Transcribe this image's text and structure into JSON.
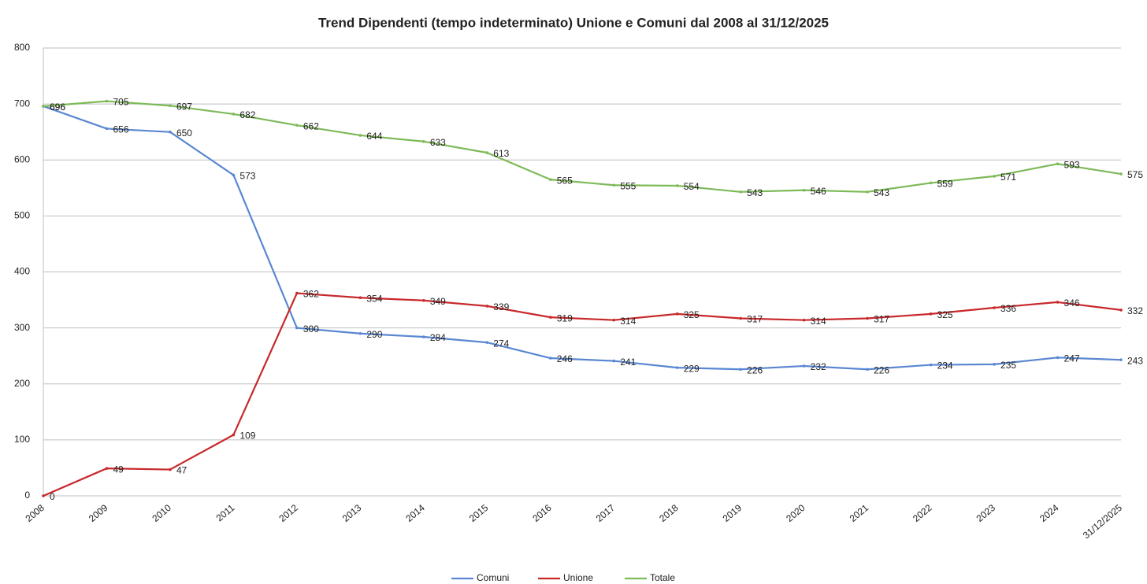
{
  "chart_data": {
    "type": "line",
    "title": "Trend Dipendenti (tempo indeterminato) Unione e Comuni dal 2008 al 31/12/2025",
    "categories": [
      "2008",
      "2009",
      "2010",
      "2011",
      "2012",
      "2013",
      "2014",
      "2015",
      "2016",
      "2017",
      "2018",
      "2019",
      "2020",
      "2021",
      "2022",
      "2023",
      "2024",
      "31/12/2025"
    ],
    "series": [
      {
        "name": "Comuni",
        "color": "#5a87d2",
        "values": [
          696,
          656,
          650,
          573,
          300,
          290,
          284,
          274,
          246,
          241,
          229,
          226,
          232,
          226,
          234,
          235,
          247,
          243
        ]
      },
      {
        "name": "Unione",
        "color": "#c8282b",
        "values": [
          0,
          49,
          47,
          109,
          362,
          354,
          349,
          339,
          319,
          314,
          325,
          317,
          314,
          317,
          325,
          336,
          346,
          332
        ]
      },
      {
        "name": "Totale",
        "color": "#7dba58",
        "values": [
          696,
          705,
          697,
          682,
          662,
          644,
          633,
          613,
          565,
          555,
          554,
          543,
          546,
          543,
          559,
          571,
          593,
          575
        ]
      }
    ],
    "ylim": [
      0,
      800
    ],
    "yticks": [
      0,
      100,
      200,
      300,
      400,
      500,
      600,
      700,
      800
    ],
    "grid": true,
    "legend": "bottom"
  }
}
